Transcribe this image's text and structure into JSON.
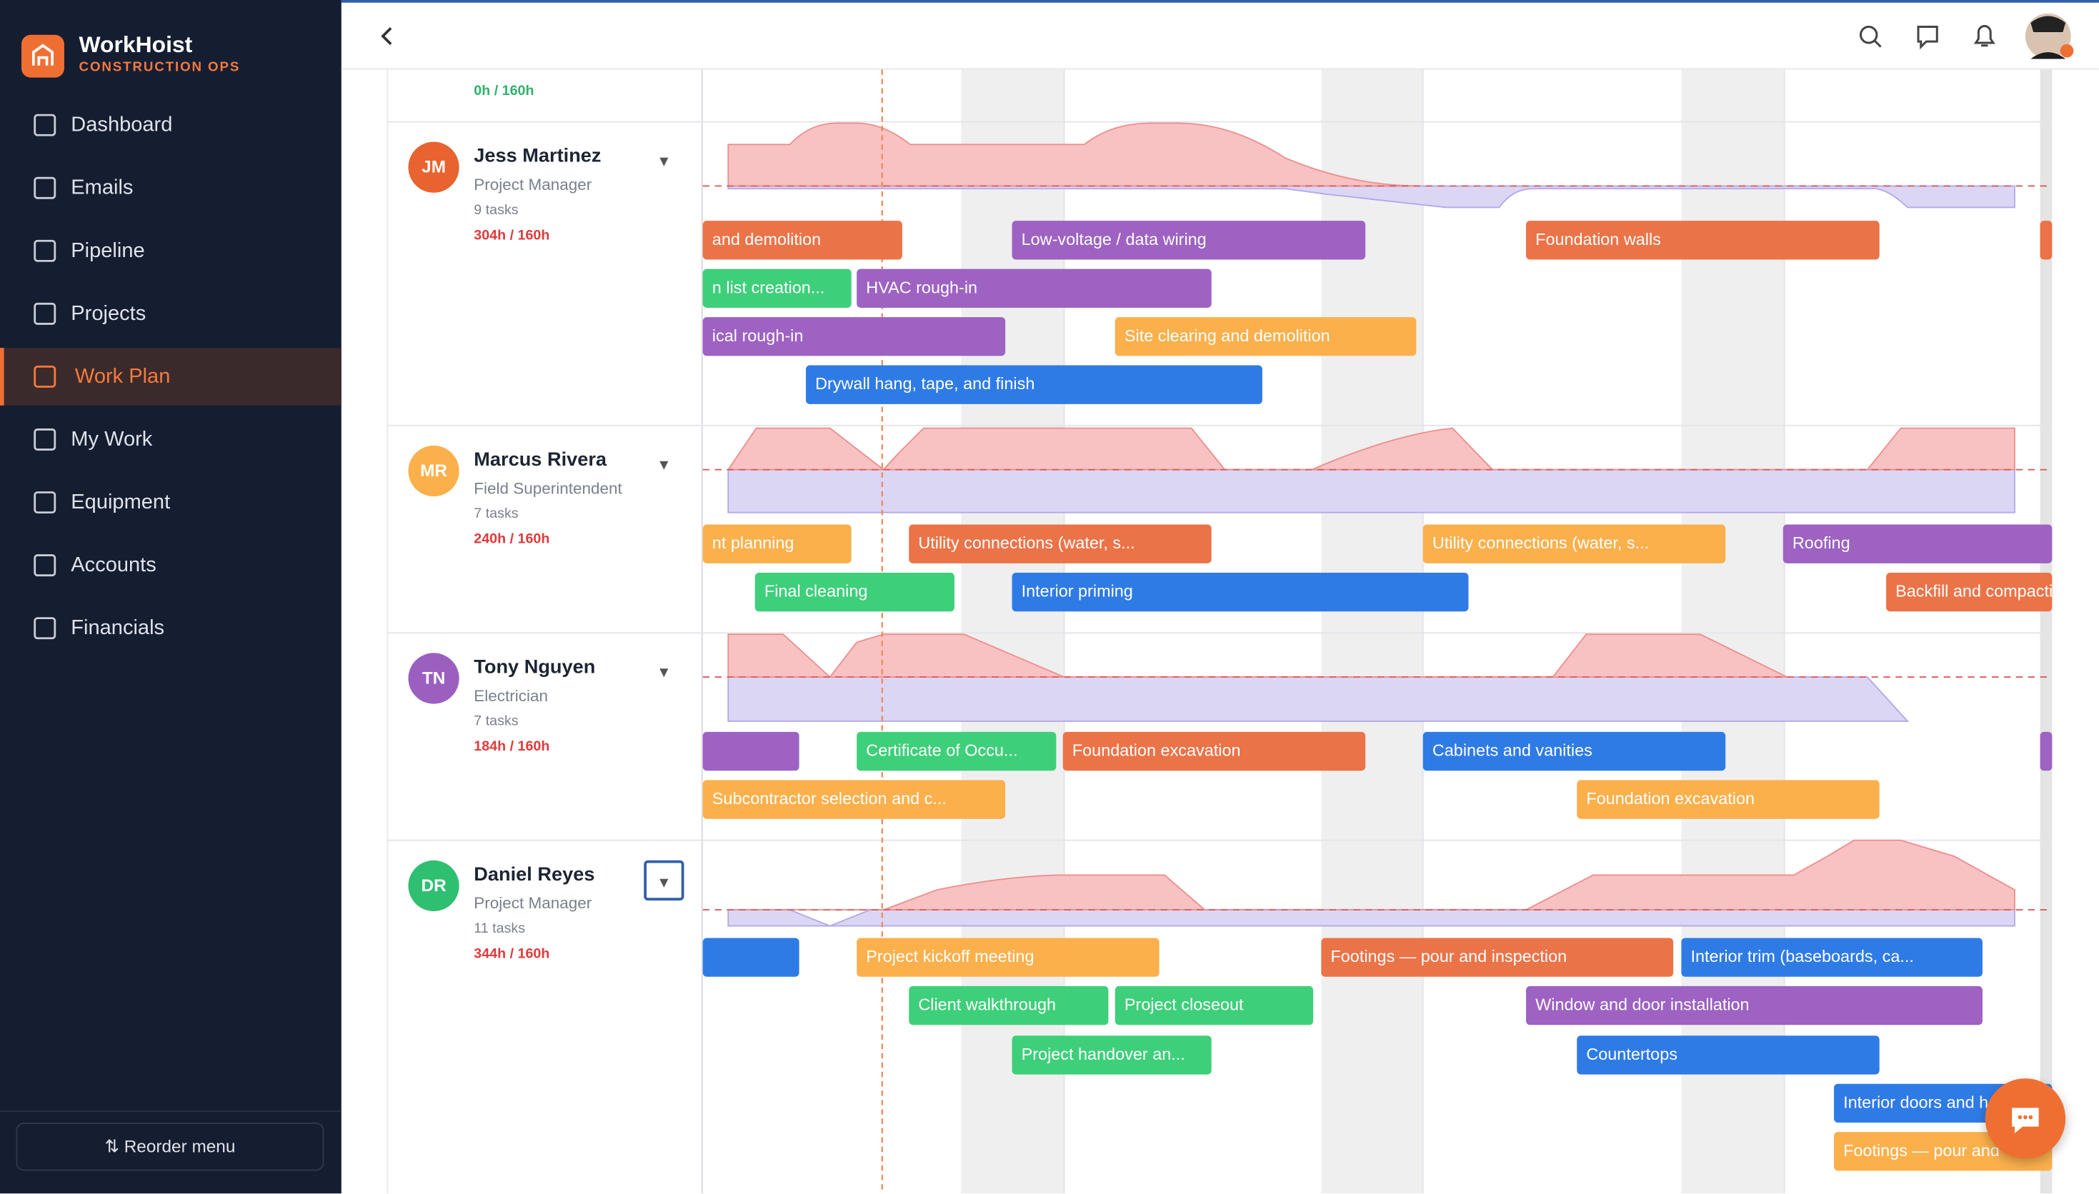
{
  "brand": {
    "name": "WorkHoist",
    "tagline": "CONSTRUCTION OPS"
  },
  "nav": [
    "Dashboard",
    "Emails",
    "Pipeline",
    "Projects",
    "Work Plan",
    "My Work",
    "Equipment",
    "Accounts",
    "Financials"
  ],
  "reorder": "Reorder menu",
  "previous_row": {
    "hours": "0h / 160h"
  },
  "people": [
    {
      "initials": "JM",
      "name": "Jess Martinez",
      "role": "Project Manager",
      "tasks": "9 tasks",
      "hours": "304h / 160h",
      "bars": [
        "and demolition",
        "Low-voltage / data wiring",
        "Foundation walls",
        "n list creation...",
        "HVAC rough-in",
        "ical rough-in",
        "Site clearing and demolition",
        "Drywall hang, tape, and finish"
      ]
    },
    {
      "initials": "MR",
      "name": "Marcus Rivera",
      "role": "Field Superintendent",
      "tasks": "7 tasks",
      "hours": "240h / 160h",
      "bars": [
        "nt planning",
        "Utility connections (water, s...",
        "Utility connections (water, s...",
        "Roofing",
        "Final cleaning",
        "Interior priming",
        "Backfill and compacti"
      ]
    },
    {
      "initials": "TN",
      "name": "Tony Nguyen",
      "role": "Electrician",
      "tasks": "7 tasks",
      "hours": "184h / 160h",
      "bars": [
        "Certificate of Occu...",
        "Foundation excavation",
        "Cabinets and vanities",
        "Subcontractor selection and c...",
        "Foundation excavation"
      ]
    },
    {
      "initials": "DR",
      "name": "Daniel Reyes",
      "role": "Project Manager",
      "tasks": "11 tasks",
      "hours": "344h / 160h",
      "bars": [
        "Project kickoff meeting",
        "Footings — pour and inspection",
        "Interior trim (baseboards, ca...",
        "Client walkthrough",
        "Project closeout",
        "Window and door installation",
        "Project handover an...",
        "Countertops",
        "Interior doors and h",
        "Footings — pour and"
      ]
    }
  ]
}
